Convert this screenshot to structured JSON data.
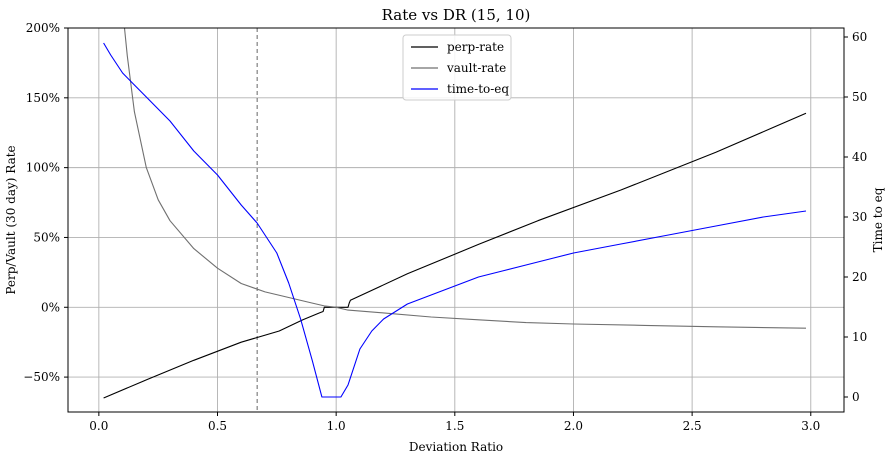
{
  "chart_data": {
    "type": "line",
    "title": "Rate vs DR (15, 10)",
    "xlabel": "Deviation Ratio",
    "ylabel": "Perp/Vault (30 day) Rate",
    "y2label": "Time to eq",
    "xlim": [
      -0.13,
      3.14
    ],
    "ylim": [
      -75,
      200
    ],
    "y2lim": [
      -2.5,
      61.5
    ],
    "xticks": [
      0.0,
      0.5,
      1.0,
      1.5,
      2.0,
      2.5,
      3.0
    ],
    "xtick_labels": [
      "0.0",
      "0.5",
      "1.0",
      "1.5",
      "2.0",
      "2.5",
      "3.0"
    ],
    "yticks": [
      -50,
      0,
      50,
      100,
      150,
      200
    ],
    "ytick_labels": [
      "−50%",
      "0%",
      "50%",
      "100%",
      "150%",
      "200%"
    ],
    "y2ticks": [
      0,
      10,
      20,
      30,
      40,
      50,
      60
    ],
    "y2tick_labels": [
      "0",
      "10",
      "20",
      "30",
      "40",
      "50",
      "60"
    ],
    "grid": true,
    "legend_position": "top-center",
    "vline": 0.667,
    "series": [
      {
        "name": "perp-rate",
        "axis": "left",
        "color": "#000000",
        "x": [
          0.02,
          0.2,
          0.4,
          0.6,
          0.76,
          0.86,
          0.93,
          0.945,
          0.95,
          1.05,
          1.055,
          1.06,
          1.3,
          1.6,
          1.85,
          2.2,
          2.6,
          2.98
        ],
        "y": [
          -65,
          -52,
          -38,
          -25,
          -17,
          -9,
          -4,
          -3,
          0,
          0,
          3,
          5,
          24,
          45,
          62,
          84,
          111,
          139
        ]
      },
      {
        "name": "vault-rate",
        "axis": "left",
        "color": "#707070",
        "x": [
          0.108,
          0.12,
          0.15,
          0.2,
          0.25,
          0.3,
          0.4,
          0.5,
          0.6,
          0.7,
          0.8,
          0.9,
          0.95,
          1.0,
          1.05,
          1.2,
          1.4,
          1.6,
          1.8,
          2.0,
          2.3,
          2.6,
          2.98
        ],
        "y": [
          200,
          180,
          140,
          100,
          77,
          62,
          42,
          28,
          17,
          11,
          7,
          3,
          1,
          0,
          -2,
          -4,
          -7,
          -9,
          -11,
          -12,
          -13,
          -14,
          -15
        ]
      },
      {
        "name": "time-to-eq",
        "axis": "right",
        "color": "#0000ff",
        "x": [
          0.02,
          0.05,
          0.1,
          0.15,
          0.2,
          0.3,
          0.4,
          0.5,
          0.6,
          0.667,
          0.7,
          0.75,
          0.8,
          0.85,
          0.9,
          0.94,
          0.96,
          1.02,
          1.05,
          1.1,
          1.15,
          1.2,
          1.3,
          1.4,
          1.5,
          1.6,
          1.7,
          1.8,
          1.9,
          2.0,
          2.2,
          2.4,
          2.6,
          2.8,
          2.98
        ],
        "y": [
          59,
          57,
          54,
          52,
          50,
          46,
          41,
          37,
          32,
          29,
          27,
          24,
          19,
          13,
          6,
          0,
          0,
          0,
          2,
          8,
          11,
          13,
          15.5,
          17,
          18.5,
          20,
          21,
          22,
          23,
          24,
          25.5,
          27,
          28.5,
          30,
          31
        ]
      }
    ]
  }
}
